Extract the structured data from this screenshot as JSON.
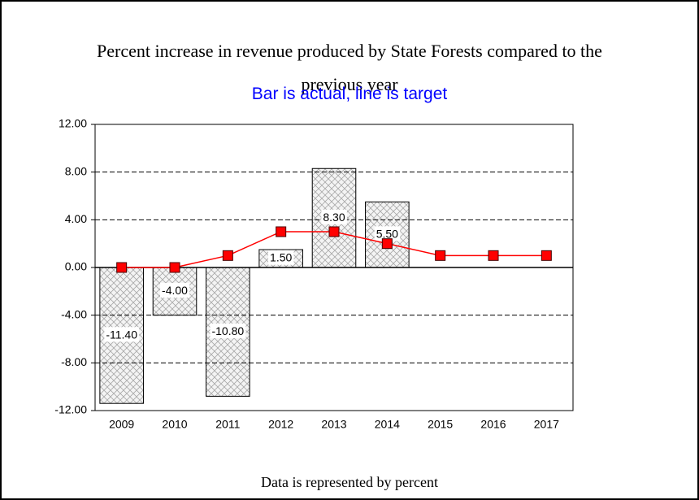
{
  "chart_data": {
    "type": "bar",
    "title": "Percent increase in revenue produced by State Forests compared to the previous year",
    "subtitle": "Bar is actual, line is target",
    "footer": "Data is represented by percent",
    "categories": [
      "2009",
      "2010",
      "2011",
      "2012",
      "2013",
      "2014",
      "2015",
      "2016",
      "2017"
    ],
    "series": [
      {
        "type": "bar",
        "color": "#d8d8d8",
        "values": [
          -11.4,
          -4.0,
          -10.8,
          1.5,
          8.3,
          5.5,
          null,
          null,
          null
        ],
        "value_labels": [
          "-11.40",
          "-4.00",
          "-10.80",
          "1.50",
          "8.30",
          "5.50",
          null,
          null,
          null
        ]
      },
      {
        "type": "line",
        "color": "#ff0000",
        "values": [
          0,
          0,
          1,
          3,
          3,
          2,
          1,
          1,
          1
        ]
      }
    ],
    "ylim": [
      -12,
      12
    ],
    "yticks": [
      {
        "value": -12,
        "label": "-12.00"
      },
      {
        "value": -8,
        "label": "-8.00"
      },
      {
        "value": -4,
        "label": "-4.00"
      },
      {
        "value": 0,
        "label": "0.00"
      },
      {
        "value": 4,
        "label": "4.00"
      },
      {
        "value": 8,
        "label": "8.00"
      },
      {
        "value": 12,
        "label": "12.00"
      }
    ],
    "grid": true
  }
}
